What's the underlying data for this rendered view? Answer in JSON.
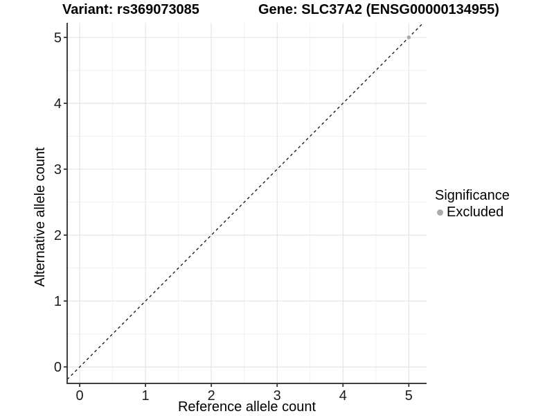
{
  "title": {
    "variant": "Variant: rs369073085",
    "gene": "Gene: SLC37A2 (ENSG00000134955)"
  },
  "legend": {
    "title": "Significance",
    "items": [
      {
        "label": "Excluded",
        "color": "#ababab"
      }
    ]
  },
  "colors": {
    "axis_line": "#3f3f3f",
    "tick_mark": "#333333",
    "grid_major": "#e4e4e4",
    "grid_minor": "#f1f1f1",
    "tick_label": "#1a1a1a",
    "reference_line": "#111111",
    "background": "#ffffff"
  },
  "chart_data": {
    "type": "scatter",
    "title": "Variant: rs369073085   Gene: SLC37A2 (ENSG00000134955)",
    "xlabel": "Reference allele count",
    "ylabel": "Alternative allele count",
    "xlim": [
      -0.19,
      5.27
    ],
    "ylim": [
      -0.25,
      5.22
    ],
    "x_ticks": [
      0,
      1,
      2,
      3,
      4,
      5
    ],
    "y_ticks": [
      0,
      1,
      2,
      3,
      4,
      5
    ],
    "grid": "major+minor",
    "legend_position": "right",
    "legend_title": "Significance",
    "series": [
      {
        "name": "Excluded",
        "color": "#ababab",
        "points": [
          [
            5,
            5
          ]
        ]
      }
    ],
    "reference_line": {
      "type": "abline",
      "slope": 1,
      "intercept": 0,
      "style": "dashed",
      "color": "#111111"
    }
  }
}
